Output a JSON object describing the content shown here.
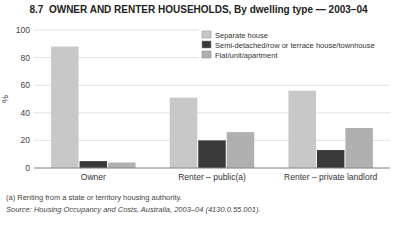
{
  "chart_data": {
    "type": "bar",
    "title": "8.7  OWNER AND RENTER HOUSEHOLDS, By dwelling type — 2003–04",
    "categories": [
      "Owner",
      "Renter – public(a)",
      "Renter – private landlord"
    ],
    "series": [
      {
        "name": "Separate house",
        "color": "#c8c8c8",
        "values": [
          88,
          51,
          56
        ]
      },
      {
        "name": "Semi-detached/row or terrace house/townhouse",
        "color": "#3a3a3a",
        "values": [
          5,
          20,
          13
        ]
      },
      {
        "name": "Flat/unit/apartment",
        "color": "#b0b0b0",
        "values": [
          4,
          26,
          29
        ]
      }
    ],
    "y_label": "%",
    "ylim": [
      0,
      100
    ],
    "yticks": [
      0,
      20,
      40,
      60,
      80,
      100
    ],
    "grid": true,
    "legend": "upper right",
    "annotations": [
      "(a) Renting from a state or territory housing authority.",
      "Source: Housing Occupancy and Costs, Australia, 2003–04 (4130.0.55.001)."
    ]
  }
}
